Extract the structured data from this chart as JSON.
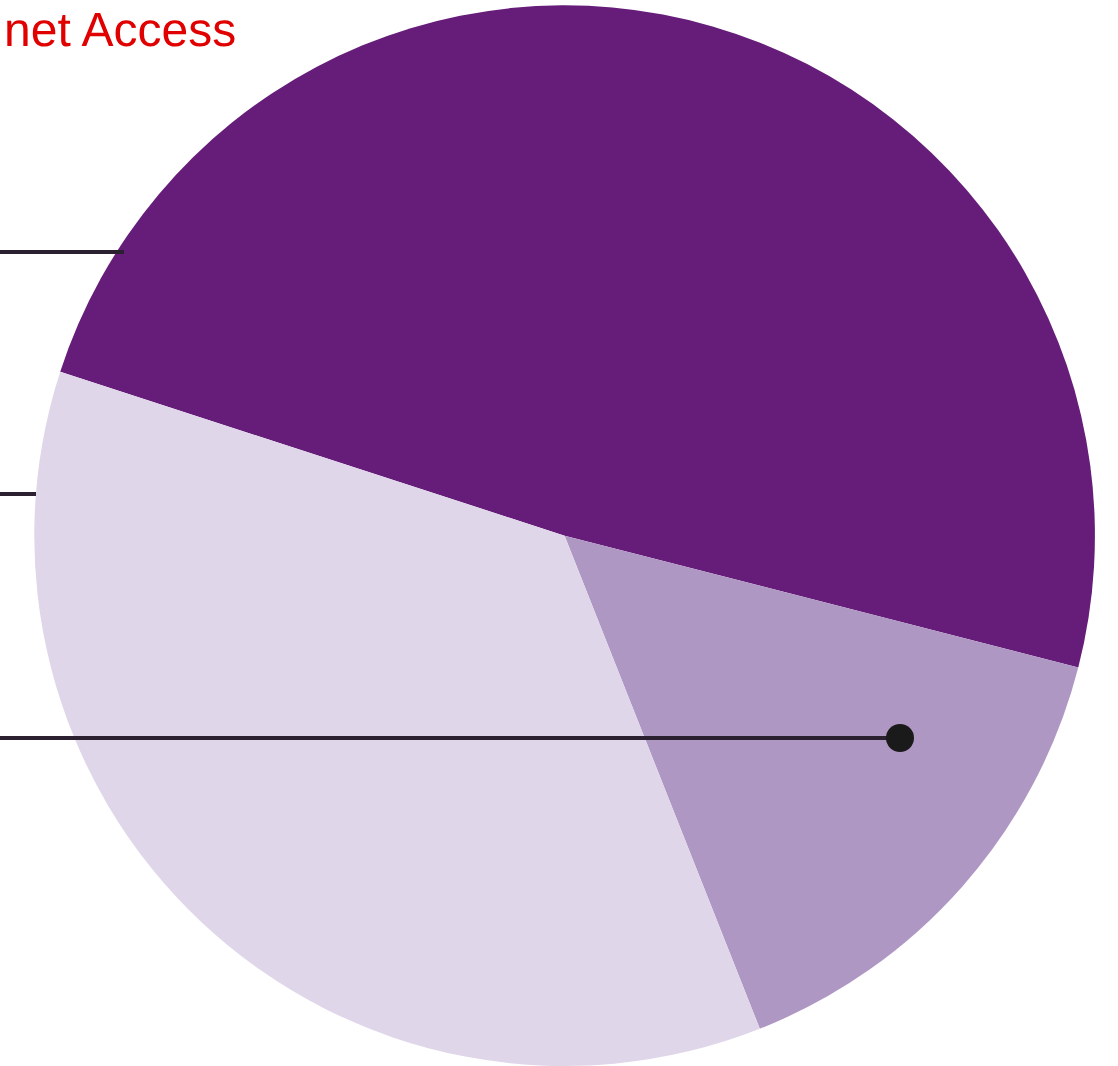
{
  "chart_data": {
    "type": "pie",
    "title": "net Access",
    "categories": [
      null,
      null,
      null
    ],
    "values": [
      49,
      15,
      36
    ],
    "colors": [
      "#661d79",
      "#af97c4",
      "#e0d6ea"
    ]
  }
}
